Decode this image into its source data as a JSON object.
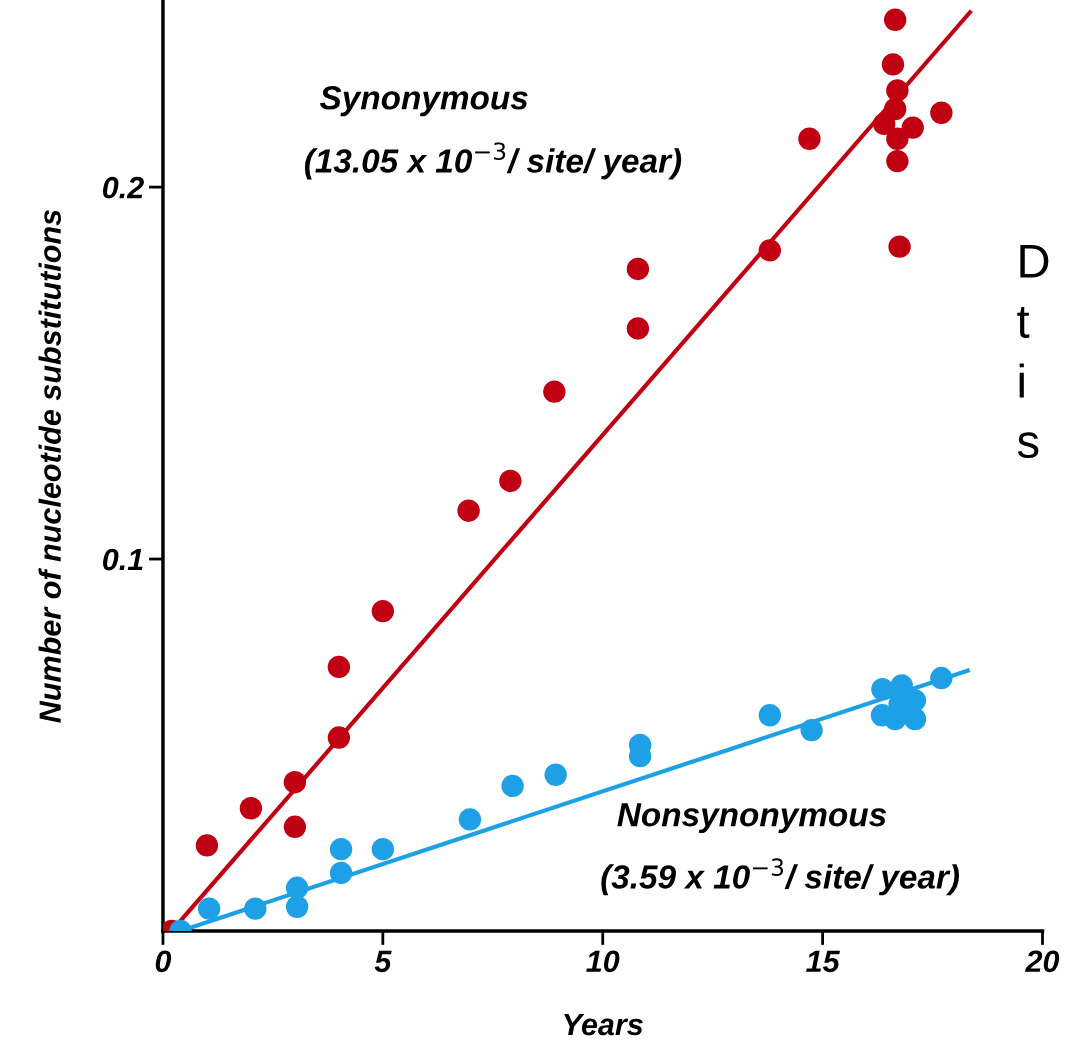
{
  "chart_data": {
    "type": "scatter",
    "xlabel": "Years",
    "ylabel": "Number of nucleotide substitutions",
    "xlim": [
      0,
      20
    ],
    "ylim": [
      0,
      0.25
    ],
    "xticks": [
      0,
      5,
      10,
      15,
      20
    ],
    "yticks": [
      0.1,
      0.2
    ],
    "grid": false,
    "series": [
      {
        "marker": "circle",
        "color": "#c00012",
        "x": [
          0.2,
          1.0,
          2.0,
          3.0,
          3.0,
          4.0,
          4.0,
          5.0,
          6.95,
          7.9,
          8.9,
          10.8,
          10.8,
          13.8,
          14.7,
          16.65,
          16.6,
          16.7,
          16.65,
          16.4,
          16.7,
          16.7,
          17.05,
          17.7,
          16.75
        ],
        "values": [
          0.0,
          0.023,
          0.033,
          0.04,
          0.028,
          0.052,
          0.071,
          0.086,
          0.113,
          0.121,
          0.145,
          0.178,
          0.162,
          0.183,
          0.213,
          0.245,
          0.233,
          0.226,
          0.221,
          0.217,
          0.213,
          0.207,
          0.216,
          0.22,
          0.184
        ]
      },
      {
        "marker": "circle",
        "color": "#1ea0e6",
        "x": [
          0.4,
          1.05,
          2.1,
          3.05,
          3.05,
          4.05,
          4.05,
          5.0,
          6.98,
          7.95,
          8.93,
          10.85,
          10.85,
          13.8,
          14.75,
          16.36,
          16.8,
          17.1,
          16.35,
          16.65,
          17.1,
          16.75,
          17.7
        ],
        "values": [
          0.0,
          0.006,
          0.006,
          0.0116,
          0.0065,
          0.0156,
          0.022,
          0.022,
          0.03,
          0.039,
          0.042,
          0.05,
          0.047,
          0.058,
          0.054,
          0.065,
          0.066,
          0.062,
          0.058,
          0.057,
          0.057,
          0.061,
          0.068
        ]
      },
      {
        "type": "line",
        "color": "#c00012",
        "x": [
          0.2,
          18.35
        ],
        "values": [
          0.0,
          0.247
        ]
      },
      {
        "type": "line",
        "color": "#1ea0e6",
        "x": [
          0.4,
          18.3
        ],
        "values": [
          0.0,
          0.07
        ]
      }
    ],
    "annotations": [
      "Synonymous",
      "(13.05 x 10$^{−3}$/ site/ year)",
      "Nonsynonymous",
      "(3.59 x 10$^{−3}$/ site/ year)",
      "D",
      "t",
      "i",
      "s"
    ]
  }
}
